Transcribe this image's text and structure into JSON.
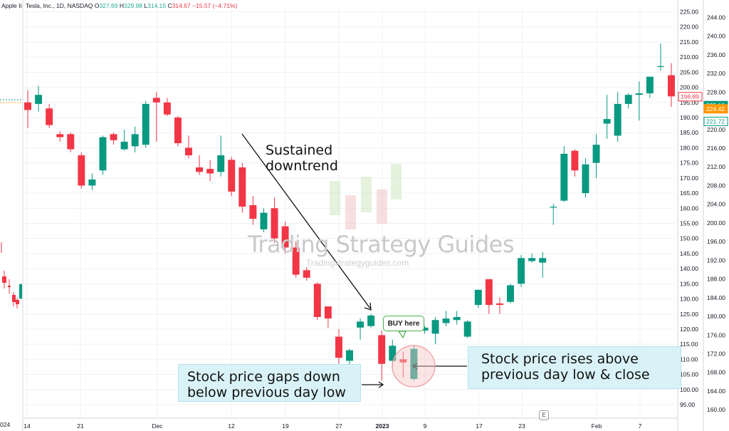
{
  "header": {
    "symbol": "Tesla, Inc., 1D, NASDAQ",
    "o_label": "O",
    "o": "327.69",
    "h_label": "H",
    "h": "329.98",
    "l_label": "L",
    "l": "314.15",
    "c_label": "C",
    "c": "314.67",
    "change": "−15.57 (−4.71%)"
  },
  "left_pane": {
    "label": "Apple Ii",
    "year": "024"
  },
  "colors": {
    "up": "#089981",
    "down": "#f23645",
    "grid": "#eef0f4",
    "axis_text": "#131722"
  },
  "chart_data": [
    {
      "type": "candlestick",
      "title": "",
      "x_tick_labels": [
        "14",
        "21",
        "Dec",
        "12",
        "19",
        "27",
        "2023",
        "9",
        "17",
        "23",
        "Feb",
        "7"
      ],
      "y_right_scale": {
        "ylim": [
          91,
          227
        ],
        "ticks": [
          95,
          100,
          105,
          110,
          115,
          120,
          125,
          130,
          135,
          140,
          145,
          150,
          155,
          160,
          165,
          170,
          175,
          180,
          185,
          190,
          195,
          200,
          205,
          210,
          215,
          220,
          225
        ]
      },
      "y_left_scale": {
        "ylim": [
          158.5,
          246.5
        ],
        "ticks": [
          160,
          164,
          168,
          172,
          176,
          180,
          184,
          188,
          192,
          196,
          200,
          204,
          208,
          212,
          216,
          220,
          224,
          228,
          232,
          236,
          240,
          244
        ]
      },
      "price_badges": [
        {
          "value": "196.89",
          "scale": "right",
          "style": "down-outline"
        },
        {
          "value": "225.12",
          "scale": "left",
          "style": "up-fill"
        },
        {
          "value": "224.42",
          "scale": "left",
          "style": "orange-fill"
        },
        {
          "value": "221.72",
          "scale": "left",
          "style": "up-outline"
        }
      ],
      "candles": [
        {
          "o": 195.0,
          "h": 199.0,
          "l": 186.5,
          "c": 192.5
        },
        {
          "o": 194.5,
          "h": 200.5,
          "l": 192.0,
          "c": 197.5
        },
        {
          "o": 193.0,
          "h": 194.5,
          "l": 186.5,
          "c": 187.5
        },
        {
          "o": 184.5,
          "h": 185.5,
          "l": 182.0,
          "c": 183.5
        },
        {
          "o": 184.5,
          "h": 185.0,
          "l": 178.5,
          "c": 179.5
        },
        {
          "o": 177.5,
          "h": 178.5,
          "l": 166.5,
          "c": 167.5
        },
        {
          "o": 167.5,
          "h": 171.5,
          "l": 166.0,
          "c": 169.5
        },
        {
          "o": 172.5,
          "h": 184.0,
          "l": 171.0,
          "c": 183.5
        },
        {
          "o": 184.5,
          "h": 185.0,
          "l": 181.0,
          "c": 182.5
        },
        {
          "o": 179.5,
          "h": 186.0,
          "l": 179.0,
          "c": 182.0
        },
        {
          "o": 180.5,
          "h": 187.0,
          "l": 178.5,
          "c": 184.5
        },
        {
          "o": 181.0,
          "h": 195.5,
          "l": 180.0,
          "c": 194.5
        },
        {
          "o": 196.5,
          "h": 198.5,
          "l": 182.0,
          "c": 195.0
        },
        {
          "o": 195.0,
          "h": 196.5,
          "l": 190.5,
          "c": 191.0
        },
        {
          "o": 190.0,
          "h": 190.5,
          "l": 180.5,
          "c": 181.5
        },
        {
          "o": 180.0,
          "h": 184.0,
          "l": 176.5,
          "c": 177.5
        },
        {
          "o": 173.5,
          "h": 177.5,
          "l": 171.0,
          "c": 172.0
        },
        {
          "o": 173.0,
          "h": 176.0,
          "l": 169.0,
          "c": 171.5
        },
        {
          "o": 172.0,
          "h": 184.0,
          "l": 170.5,
          "c": 177.5
        },
        {
          "o": 176.0,
          "h": 177.0,
          "l": 164.0,
          "c": 165.5
        },
        {
          "o": 173.5,
          "h": 175.0,
          "l": 158.5,
          "c": 160.5
        },
        {
          "o": 161.0,
          "h": 164.0,
          "l": 154.5,
          "c": 156.5
        },
        {
          "o": 153.0,
          "h": 160.0,
          "l": 152.0,
          "c": 158.5
        },
        {
          "o": 160.0,
          "h": 163.5,
          "l": 148.5,
          "c": 150.0
        },
        {
          "o": 154.0,
          "h": 155.5,
          "l": 145.0,
          "c": 147.0
        },
        {
          "o": 147.0,
          "h": 149.0,
          "l": 137.0,
          "c": 138.0
        },
        {
          "o": 139.5,
          "h": 140.5,
          "l": 136.0,
          "c": 137.0
        },
        {
          "o": 135.0,
          "h": 135.5,
          "l": 123.0,
          "c": 124.0
        },
        {
          "o": 127.5,
          "h": 127.5,
          "l": 120.5,
          "c": 123.5
        },
        {
          "o": 117.5,
          "h": 120.0,
          "l": 108.5,
          "c": 110.5
        },
        {
          "o": 109.5,
          "h": 113.5,
          "l": 108.0,
          "c": 113.0
        },
        {
          "o": 120.5,
          "h": 123.5,
          "l": 116.5,
          "c": 122.5
        },
        {
          "o": 121.0,
          "h": 125.0,
          "l": 120.5,
          "c": 124.5
        },
        {
          "o": 118.0,
          "h": 119.5,
          "l": 103.0,
          "c": 108.5
        },
        {
          "o": 109.5,
          "h": 116.5,
          "l": 106.5,
          "c": 114.5
        },
        {
          "o": 110.0,
          "h": 112.5,
          "l": 104.0,
          "c": 109.0
        },
        {
          "o": 103.5,
          "h": 114.5,
          "l": 103.0,
          "c": 113.5
        },
        {
          "o": 119.5,
          "h": 121.0,
          "l": 118.5,
          "c": 120.5
        },
        {
          "o": 118.5,
          "h": 124.0,
          "l": 115.0,
          "c": 123.0
        },
        {
          "o": 122.0,
          "h": 126.0,
          "l": 121.0,
          "c": 123.5
        },
        {
          "o": 123.0,
          "h": 126.0,
          "l": 121.5,
          "c": 124.0
        },
        {
          "o": 117.5,
          "h": 123.0,
          "l": 117.0,
          "c": 122.5
        },
        {
          "o": 128.0,
          "h": 133.0,
          "l": 127.0,
          "c": 133.0
        },
        {
          "o": 136.5,
          "h": 136.5,
          "l": 125.0,
          "c": 128.0
        },
        {
          "o": 128.5,
          "h": 130.5,
          "l": 125.0,
          "c": 128.0
        },
        {
          "o": 129.0,
          "h": 135.0,
          "l": 128.5,
          "c": 134.5
        },
        {
          "o": 135.0,
          "h": 144.5,
          "l": 134.0,
          "c": 143.5
        },
        {
          "o": 142.5,
          "h": 145.0,
          "l": 142.0,
          "c": 143.5
        },
        {
          "o": 142.0,
          "h": 145.5,
          "l": 137.0,
          "c": 143.5
        },
        {
          "o": 160.5,
          "h": 161.5,
          "l": 154.5,
          "c": 160.5
        },
        {
          "o": 162.5,
          "h": 180.5,
          "l": 162.0,
          "c": 178.0
        },
        {
          "o": 179.0,
          "h": 179.5,
          "l": 170.5,
          "c": 172.5
        },
        {
          "o": 165.0,
          "h": 176.5,
          "l": 163.5,
          "c": 174.5
        },
        {
          "o": 175.0,
          "h": 184.5,
          "l": 170.0,
          "c": 181.0
        },
        {
          "o": 188.0,
          "h": 197.5,
          "l": 183.0,
          "c": 189.5
        },
        {
          "o": 184.0,
          "h": 198.5,
          "l": 182.0,
          "c": 194.5
        },
        {
          "o": 194.5,
          "h": 198.0,
          "l": 193.0,
          "c": 197.5
        },
        {
          "o": 197.5,
          "h": 202.0,
          "l": 189.0,
          "c": 198.0
        },
        {
          "o": 198.0,
          "h": 203.5,
          "l": 196.5,
          "c": 203.5
        },
        {
          "o": 207.0,
          "h": 214.5,
          "l": 205.5,
          "c": 207.0
        },
        {
          "o": 204.0,
          "h": 208.0,
          "l": 193.5,
          "c": 197.0
        }
      ],
      "annotations": {
        "arrow_text_1": "Sustained",
        "arrow_text_2": "downtrend",
        "left_callout_1": "Stock price gaps down",
        "left_callout_2": "below previous day low",
        "right_callout_1": "Stock price rises above",
        "right_callout_2": "previous day low & close",
        "buy_label": "BUY here",
        "event_marker": "E"
      },
      "watermark": {
        "title": "Trading Strategy Guides",
        "url": "Tradingstrategyguides.com"
      }
    }
  ]
}
